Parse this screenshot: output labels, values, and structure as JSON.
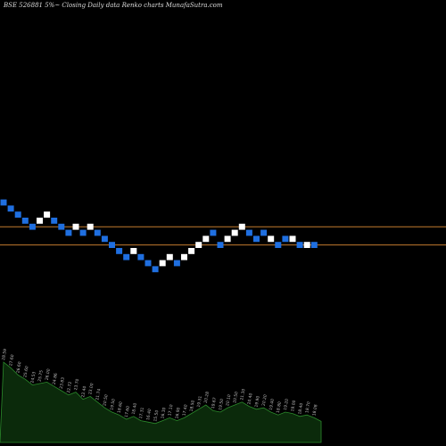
{
  "title": "BSE 526881 5%~   Closing Daily data  Renko  charts MunafaSutra.com",
  "chart_data": {
    "type": "renko",
    "colors": {
      "up": "#ffffff",
      "down": "#1f6fe0",
      "line": "#c27a2e",
      "volume_fill": "#0b2a0b",
      "volume_stroke": "#2b8a2b",
      "label": "#bbbbbb"
    },
    "reference_lines": [
      1,
      4
    ],
    "bricks": [
      {
        "col": 0,
        "level": 8,
        "dir": "down"
      },
      {
        "col": 1,
        "level": 7,
        "dir": "down"
      },
      {
        "col": 2,
        "level": 6,
        "dir": "down"
      },
      {
        "col": 3,
        "level": 5,
        "dir": "down"
      },
      {
        "col": 4,
        "level": 4,
        "dir": "down"
      },
      {
        "col": 5,
        "level": 5,
        "dir": "up"
      },
      {
        "col": 6,
        "level": 6,
        "dir": "up"
      },
      {
        "col": 7,
        "level": 5,
        "dir": "down"
      },
      {
        "col": 8,
        "level": 4,
        "dir": "down"
      },
      {
        "col": 9,
        "level": 3,
        "dir": "down"
      },
      {
        "col": 10,
        "level": 4,
        "dir": "up"
      },
      {
        "col": 11,
        "level": 3,
        "dir": "down"
      },
      {
        "col": 12,
        "level": 4,
        "dir": "up"
      },
      {
        "col": 13,
        "level": 3,
        "dir": "down"
      },
      {
        "col": 14,
        "level": 2,
        "dir": "down"
      },
      {
        "col": 15,
        "level": 1,
        "dir": "down"
      },
      {
        "col": 16,
        "level": 0,
        "dir": "down"
      },
      {
        "col": 17,
        "level": -1,
        "dir": "down"
      },
      {
        "col": 18,
        "level": 0,
        "dir": "up"
      },
      {
        "col": 19,
        "level": -1,
        "dir": "down"
      },
      {
        "col": 20,
        "level": -2,
        "dir": "down"
      },
      {
        "col": 21,
        "level": -3,
        "dir": "down"
      },
      {
        "col": 22,
        "level": -2,
        "dir": "up"
      },
      {
        "col": 23,
        "level": -1,
        "dir": "up"
      },
      {
        "col": 24,
        "level": -2,
        "dir": "down"
      },
      {
        "col": 25,
        "level": -1,
        "dir": "up"
      },
      {
        "col": 26,
        "level": 0,
        "dir": "up"
      },
      {
        "col": 27,
        "level": 1,
        "dir": "up"
      },
      {
        "col": 28,
        "level": 2,
        "dir": "up"
      },
      {
        "col": 29,
        "level": 3,
        "dir": "down"
      },
      {
        "col": 30,
        "level": 1,
        "dir": "down"
      },
      {
        "col": 31,
        "level": 2,
        "dir": "up"
      },
      {
        "col": 32,
        "level": 3,
        "dir": "up"
      },
      {
        "col": 33,
        "level": 4,
        "dir": "up"
      },
      {
        "col": 34,
        "level": 3,
        "dir": "down"
      },
      {
        "col": 35,
        "level": 2,
        "dir": "down"
      },
      {
        "col": 36,
        "level": 3,
        "dir": "down"
      },
      {
        "col": 37,
        "level": 2,
        "dir": "up"
      },
      {
        "col": 38,
        "level": 1,
        "dir": "down"
      },
      {
        "col": 39,
        "level": 2,
        "dir": "down"
      },
      {
        "col": 40,
        "level": 2,
        "dir": "up"
      },
      {
        "col": 41,
        "level": 1,
        "dir": "down"
      },
      {
        "col": 42,
        "level": 1,
        "dir": "up"
      },
      {
        "col": 43,
        "level": 1,
        "dir": "down"
      }
    ],
    "volume": [
      {
        "col": 0,
        "v": 90,
        "label": "28.59"
      },
      {
        "col": 1,
        "v": 82,
        "label": "27.60"
      },
      {
        "col": 2,
        "v": 72,
        "label": "26.60"
      },
      {
        "col": 3,
        "v": 66,
        "label": "25.60"
      },
      {
        "col": 4,
        "v": 58,
        "label": "24.53"
      },
      {
        "col": 5,
        "v": 60,
        "label": "25.75"
      },
      {
        "col": 6,
        "v": 62,
        "label": "26.00"
      },
      {
        "col": 7,
        "v": 56,
        "label": "24.86"
      },
      {
        "col": 8,
        "v": 50,
        "label": "23.83"
      },
      {
        "col": 9,
        "v": 44,
        "label": "22.72"
      },
      {
        "col": 10,
        "v": 48,
        "label": "23.70"
      },
      {
        "col": 11,
        "v": 38,
        "label": "22.40"
      },
      {
        "col": 12,
        "v": 42,
        "label": "23.00"
      },
      {
        "col": 13,
        "v": 34,
        "label": "21.74"
      },
      {
        "col": 14,
        "v": 26,
        "label": "20.50"
      },
      {
        "col": 15,
        "v": 20,
        "label": "19.50"
      },
      {
        "col": 16,
        "v": 16,
        "label": "18.60"
      },
      {
        "col": 17,
        "v": 10,
        "label": "17.60"
      },
      {
        "col": 18,
        "v": 14,
        "label": "18.40"
      },
      {
        "col": 19,
        "v": 8,
        "label": "17.31"
      },
      {
        "col": 20,
        "v": 6,
        "label": "16.40"
      },
      {
        "col": 21,
        "v": 4,
        "label": "15.50"
      },
      {
        "col": 22,
        "v": 8,
        "label": "16.30"
      },
      {
        "col": 23,
        "v": 12,
        "label": "17.10"
      },
      {
        "col": 24,
        "v": 8,
        "label": "16.90"
      },
      {
        "col": 25,
        "v": 12,
        "label": "17.40"
      },
      {
        "col": 26,
        "v": 18,
        "label": "18.50"
      },
      {
        "col": 27,
        "v": 24,
        "label": "19.31"
      },
      {
        "col": 28,
        "v": 30,
        "label": "20.28"
      },
      {
        "col": 29,
        "v": 22,
        "label": "19.67"
      },
      {
        "col": 30,
        "v": 20,
        "label": "19.50"
      },
      {
        "col": 31,
        "v": 26,
        "label": "20.10"
      },
      {
        "col": 32,
        "v": 30,
        "label": "20.50"
      },
      {
        "col": 33,
        "v": 34,
        "label": "21.30"
      },
      {
        "col": 34,
        "v": 28,
        "label": "20.40"
      },
      {
        "col": 35,
        "v": 24,
        "label": "19.90"
      },
      {
        "col": 36,
        "v": 26,
        "label": "20.20"
      },
      {
        "col": 37,
        "v": 20,
        "label": "19.40"
      },
      {
        "col": 38,
        "v": 16,
        "label": "18.80"
      },
      {
        "col": 39,
        "v": 20,
        "label": "19.20"
      },
      {
        "col": 40,
        "v": 18,
        "label": "19.00"
      },
      {
        "col": 41,
        "v": 14,
        "label": "18.40"
      },
      {
        "col": 42,
        "v": 16,
        "label": "18.70"
      },
      {
        "col": 43,
        "v": 12,
        "label": "18.08"
      }
    ]
  }
}
